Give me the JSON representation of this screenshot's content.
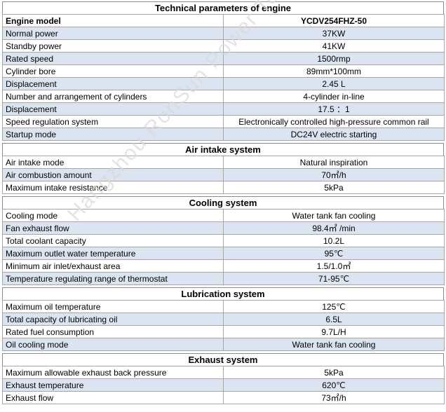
{
  "title": "Technical parameters of engine",
  "watermark": "Hangzhou RonSun Power Technology Co.,",
  "engine": {
    "header": {
      "label": "Engine model",
      "value": "YCDV254FHZ-50"
    },
    "rows": [
      {
        "label": "Normal power",
        "value": "37KW"
      },
      {
        "label": "Standby power",
        "value": "41KW"
      },
      {
        "label": "Rated speed",
        "value": "1500rmp"
      },
      {
        "label": "Cylinder bore",
        "value": "89mm*100mm"
      },
      {
        "label": "Displacement",
        "value": "2.45 L"
      },
      {
        "label": "Number and arrangement of cylinders",
        "value": "4-cylinder in-line"
      },
      {
        "label": "Displacement",
        "value": "17.5 ：1"
      },
      {
        "label": "Speed regulation system",
        "value": "Electronically controlled high-pressure common rail"
      },
      {
        "label": "Startup mode",
        "value": "DC24V electric starting"
      }
    ]
  },
  "air_intake": {
    "title": "Air intake system",
    "rows": [
      {
        "label": "Air intake mode",
        "value": "Natural inspiration"
      },
      {
        "label": "Air combustion amount",
        "value": "70㎡/h"
      },
      {
        "label": "Maximum intake resistance",
        "value": "5kPa"
      }
    ]
  },
  "cooling": {
    "title": "Cooling system",
    "rows": [
      {
        "label": "Cooling mode",
        "value": "Water tank fan cooling"
      },
      {
        "label": "Fan exhaust flow",
        "value": "98.4㎡  /min"
      },
      {
        "label": "Total coolant capacity",
        "value": "10.2L"
      },
      {
        "label": "Maximum outlet water temperature",
        "value": "95℃"
      },
      {
        "label": "Minimum air inlet/exhaust area",
        "value": "1.5/1.0㎡"
      },
      {
        "label": "Temperature regulating range of thermostat",
        "value": "71-95℃"
      }
    ]
  },
  "lubrication": {
    "title": "Lubrication system",
    "rows": [
      {
        "label": "Maximum oil temperature",
        "value": "125℃"
      },
      {
        "label": "Total capacity of lubricating oil",
        "value": "6.5L"
      },
      {
        "label": "Rated fuel consumption",
        "value": "9.7L/H"
      },
      {
        "label": "Oil cooling mode",
        "value": "Water tank fan cooling"
      }
    ]
  },
  "exhaust": {
    "title": "Exhaust system",
    "rows": [
      {
        "label": "Maximum allowable exhaust back pressure",
        "value": "5kPa"
      },
      {
        "label": "Exhaust temperature",
        "value": "620℃"
      },
      {
        "label": "Exhaust flow",
        "value": "73㎡/h"
      }
    ]
  },
  "colors": {
    "row_alt": "#dbe5f1",
    "border": "#a6a6a6"
  }
}
